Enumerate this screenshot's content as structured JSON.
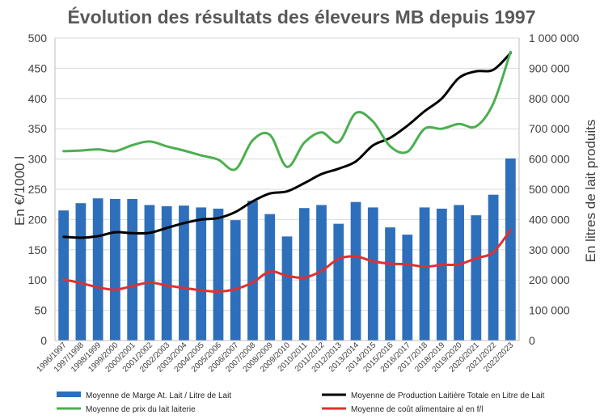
{
  "chart_data": {
    "type": "bar+line",
    "title": "Évolution des résultats des éleveurs MB depuis 1997",
    "ylabel_left": "En €/1000 l",
    "ylabel_right": "En litres de lait produits",
    "ylim_left": [
      0,
      500
    ],
    "ylim_right": [
      0,
      1000000
    ],
    "left_ticks": [
      "0",
      "50",
      "100",
      "150",
      "200",
      "250",
      "300",
      "350",
      "400",
      "450",
      "500"
    ],
    "right_ticks": [
      "0",
      "100 000",
      "200 000",
      "300 000",
      "400 000",
      "500 000",
      "600 000",
      "700 000",
      "800 000",
      "900 000",
      "1 000 000"
    ],
    "categories": [
      "1996/1997",
      "1997/1998",
      "1998/1999",
      "1999/2000",
      "2000/2001",
      "2001/2002",
      "2002/2003",
      "2003/2004",
      "2004/2005",
      "2005/2006",
      "2006/2007",
      "2007/2008",
      "2008/2009",
      "2009/2010",
      "2010/2011",
      "2011/2012",
      "2012/2013",
      "2013/2014",
      "2014/2015",
      "2015/2016",
      "2016/2017",
      "2017/2018",
      "2018/2019",
      "2019/2020",
      "2020/2021",
      "2021/2022",
      "2022/2023"
    ],
    "series": [
      {
        "name": "Moyenne de Marge At. Lait / Litre de Lait",
        "kind": "bar",
        "axis": "left",
        "color": "#2e6fbb",
        "values": [
          215,
          227,
          235,
          234,
          234,
          224,
          222,
          223,
          220,
          218,
          199,
          231,
          209,
          172,
          219,
          224,
          193,
          229,
          220,
          187,
          175,
          220,
          218,
          224,
          207,
          241,
          301
        ]
      },
      {
        "name": "Moyenne de Production Laitière Totale en Litre de Lait",
        "kind": "line",
        "axis": "right",
        "color": "#000000",
        "values": [
          343000,
          340000,
          345000,
          358000,
          355000,
          356000,
          372000,
          388000,
          400000,
          405000,
          425000,
          460000,
          486000,
          493000,
          520000,
          550000,
          568000,
          592000,
          645000,
          670000,
          710000,
          758000,
          800000,
          868000,
          890000,
          895000,
          950000
        ]
      },
      {
        "name": "Moyenne de prix du lait laiterie",
        "kind": "line",
        "axis": "left",
        "color": "#4caf50",
        "values": [
          313,
          314,
          316,
          313,
          323,
          329,
          321,
          314,
          306,
          299,
          283,
          331,
          340,
          287,
          327,
          344,
          328,
          376,
          362,
          321,
          312,
          350,
          350,
          358,
          354,
          392,
          477
        ]
      },
      {
        "name": "Moyenne de coût alimentaire al en f/l",
        "kind": "line",
        "axis": "left",
        "color": "#e03030",
        "values": [
          101,
          95,
          88,
          84,
          90,
          96,
          91,
          87,
          83,
          81,
          85,
          96,
          114,
          107,
          104,
          115,
          135,
          139,
          131,
          127,
          126,
          122,
          125,
          126,
          136,
          146,
          183
        ]
      }
    ],
    "legend_position": "bottom"
  }
}
